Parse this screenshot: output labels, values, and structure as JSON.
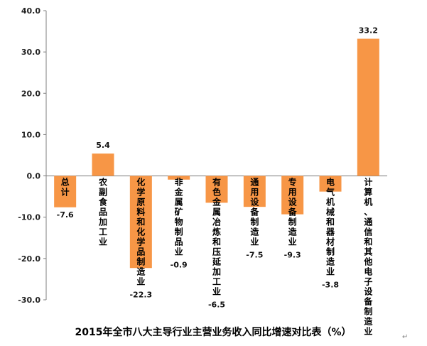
{
  "chart_data": {
    "type": "bar",
    "title": "2015年全市八大主导行业主营业务收入同比增速对比表（%）",
    "categories": [
      "总计",
      "农副食品加工业",
      "化学原料和化学品制造业",
      "非金属矿物制品业",
      "有色金属冶炼和压延加工业",
      "通用设备制造业",
      "专用设备制造业",
      "电气机械和器材制造业",
      "计算机、通信和其他电子设备制造业"
    ],
    "values": [
      -7.6,
      5.4,
      -22.3,
      -0.9,
      -6.5,
      -7.5,
      -9.3,
      -3.8,
      33.2
    ],
    "value_labels": [
      "-7.6",
      "5.4",
      "-22.3",
      "-0.9",
      "-6.5",
      "-7.5",
      "-9.3",
      "-3.8",
      "33.2"
    ],
    "ylim": [
      -30,
      40
    ],
    "yticks": [
      "-30.0",
      "-20.0",
      "-10.0",
      "0.0",
      "10.0",
      "20.0",
      "30.0",
      "40.0"
    ],
    "ytick_values": [
      -30,
      -20,
      -10,
      0,
      10,
      20,
      30,
      40
    ],
    "grid": false,
    "bar_color": "#F79646"
  },
  "end_mark": "↵"
}
